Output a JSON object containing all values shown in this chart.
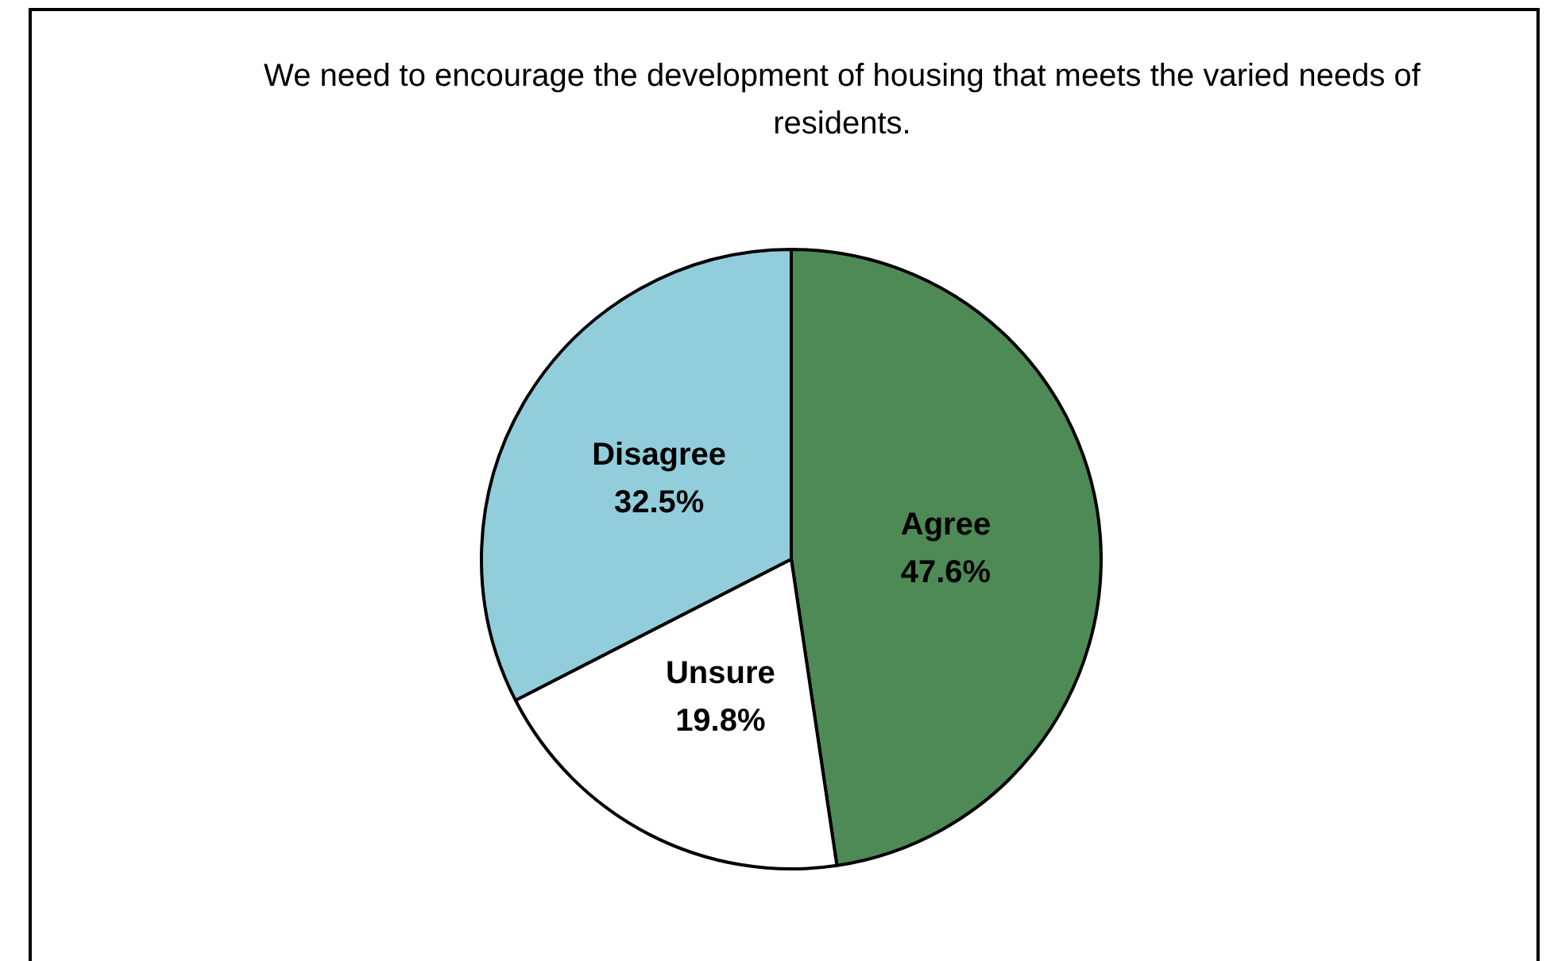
{
  "chart_data": {
    "type": "pie",
    "title": "We need to encourage the development of housing that meets the varied needs of residents.",
    "categories": [
      "Agree",
      "Unsure",
      "Disagree"
    ],
    "values": [
      47.6,
      19.8,
      32.5
    ],
    "value_labels": [
      "47.6%",
      "19.8%",
      "32.5%"
    ],
    "colors": [
      "#4e8a55",
      "#ffffff",
      "#92cddc"
    ],
    "legend": false
  }
}
